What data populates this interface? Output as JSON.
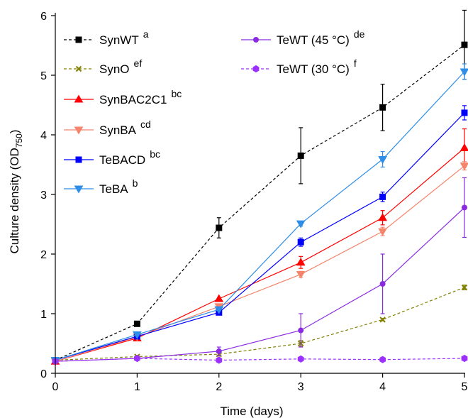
{
  "chart_data": {
    "type": "line",
    "title": "",
    "xlabel": "Time (days)",
    "ylabel_main": "Culture density (OD",
    "ylabel_sub": "750",
    "ylabel_end": ")",
    "xlim": [
      0,
      5
    ],
    "ylim": [
      0,
      6
    ],
    "xticks": [
      "0",
      "1",
      "2",
      "3",
      "4",
      "5"
    ],
    "yticks": [
      "0",
      "1",
      "2",
      "3",
      "4",
      "5",
      "6"
    ],
    "grid": false,
    "legend_position": "top-left, two columns",
    "x": [
      0,
      1,
      2,
      3,
      4,
      5
    ],
    "series": [
      {
        "name": "SynWT",
        "sup": "a",
        "color": "#000000",
        "dash": true,
        "marker": "square",
        "values": [
          0.22,
          0.83,
          2.44,
          3.65,
          4.46,
          5.51
        ],
        "errors": [
          0.02,
          0.02,
          0.17,
          0.47,
          0.39,
          0.58
        ]
      },
      {
        "name": "SynO",
        "sup": "ef",
        "color": "#808000",
        "dash": true,
        "marker": "x",
        "values": [
          0.22,
          0.28,
          0.32,
          0.5,
          0.9,
          1.44
        ],
        "errors": [
          0.02,
          0.02,
          0.03,
          0.05,
          0.02,
          0.04
        ]
      },
      {
        "name": "SynBAC2C1",
        "sup": "bc",
        "color": "#ff0000",
        "dash": false,
        "marker": "triangle-up",
        "values": [
          0.2,
          0.59,
          1.25,
          1.86,
          2.61,
          3.78
        ],
        "errors": [
          0.02,
          0.03,
          0.0,
          0.1,
          0.12,
          0.32
        ]
      },
      {
        "name": "SynBA",
        "sup": "cd",
        "color": "#f4846c",
        "dash": false,
        "marker": "triangle-down",
        "values": [
          0.2,
          0.61,
          1.12,
          1.66,
          2.38,
          3.48
        ],
        "errors": [
          0.02,
          0.02,
          0.0,
          0.05,
          0.07,
          0.07
        ]
      },
      {
        "name": "TeBACD",
        "sup": "bc",
        "color": "#0000ff",
        "dash": false,
        "marker": "square",
        "values": [
          0.22,
          0.62,
          1.02,
          2.2,
          2.96,
          4.37
        ],
        "errors": [
          0.02,
          0.02,
          0.02,
          0.07,
          0.08,
          0.12
        ]
      },
      {
        "name": "TeBA",
        "sup": "b",
        "color": "#2e8de6",
        "dash": false,
        "marker": "triangle-down",
        "values": [
          0.22,
          0.65,
          1.07,
          2.51,
          3.59,
          5.06
        ],
        "errors": [
          0.02,
          0.02,
          0.02,
          0.04,
          0.13,
          0.13
        ]
      },
      {
        "name": "TeWT (45 °C)",
        "sup": "de",
        "color": "#8a2be2",
        "dash": false,
        "marker": "circle",
        "values": [
          0.2,
          0.25,
          0.37,
          0.72,
          1.5,
          2.78
        ],
        "errors": [
          0.02,
          0.03,
          0.07,
          0.28,
          0.5,
          0.5
        ]
      },
      {
        "name": "TeWT (30 °C)",
        "sup": "f",
        "color": "#9b30ff",
        "dash": true,
        "marker": "hexagon",
        "values": [
          0.2,
          0.25,
          0.22,
          0.24,
          0.23,
          0.25
        ],
        "errors": [
          0.01,
          0.02,
          0.02,
          0.02,
          0.02,
          0.02
        ]
      }
    ]
  }
}
